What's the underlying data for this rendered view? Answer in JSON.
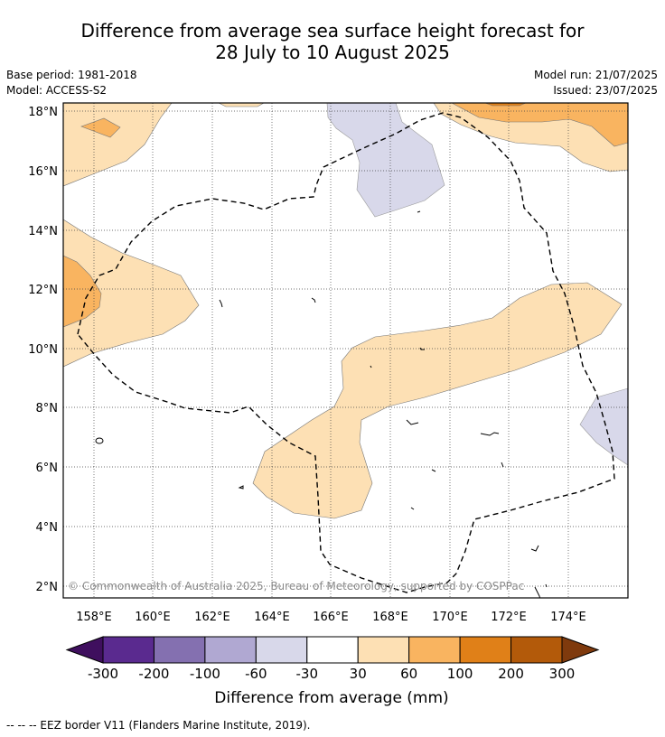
{
  "title_line1": "Difference from average sea surface height forecast for",
  "title_line2": "28 July to 10 August 2025",
  "base_period": "Base period: 1981-2018",
  "model": "Model: ACCESS-S2",
  "model_run": "Model run: 21/07/2025",
  "issued": "Issued: 23/07/2025",
  "copyright": "© Commonwealth of Australia 2025, Bureau of Meteorology, supported by COSPPac",
  "footer_note": "--  --  -- EEZ border V11 (Flanders Marine Institute, 2019).",
  "lat_labels": [
    "18°N",
    "16°N",
    "14°N",
    "12°N",
    "10°N",
    "8°N",
    "6°N",
    "4°N",
    "2°N"
  ],
  "lon_labels": [
    "158°E",
    "160°E",
    "162°E",
    "164°E",
    "166°E",
    "168°E",
    "170°E",
    "172°E",
    "174°E"
  ],
  "colorbar": {
    "title": "Difference from average (mm)",
    "tick_labels": [
      "-300",
      "-200",
      "-100",
      "-60",
      "-30",
      "30",
      "60",
      "100",
      "200",
      "300"
    ],
    "colors": [
      "#3f0f5e",
      "#5a2a8f",
      "#8470b0",
      "#b0a8d2",
      "#d8d8ea",
      "#ffffff",
      "#fde0b4",
      "#f9b460",
      "#e08018",
      "#b35a0a",
      "#7f3a0d"
    ]
  },
  "chart_data": {
    "type": "heatmap",
    "lat_range": [
      1.6,
      18.3
    ],
    "lon_range": [
      157,
      176
    ],
    "grid": true,
    "legend_placement": "bottom",
    "levels_mm": [
      -300,
      -200,
      -100,
      -60,
      -30,
      30,
      60,
      100,
      200,
      300
    ],
    "regions": [
      {
        "category": "30 to 60",
        "area": "north-west corner near 157-160°E, 16-18°N"
      },
      {
        "category": "60 to 100",
        "area": "small patch near 158.5°E, 17.5°N"
      },
      {
        "category": "30 to 60",
        "area": "west edge near 157-161.5°E, 9.5-14°N"
      },
      {
        "category": "60 to 100",
        "area": "west edge near 157-158°E, 10.5-13°N"
      },
      {
        "category": "30 to 60",
        "area": "diagonal band from 163.5°E, 5°N to 175.5°E, 12°N"
      },
      {
        "category": "30 to 60",
        "area": "north-east near 169.5-176°E, 16-18°N"
      },
      {
        "category": "60 to 100",
        "area": "north-east near 170.5-176°E, 16.8-18°N"
      },
      {
        "category": "-60 to -30",
        "area": "north near 166-171°E, 14.5-18°N"
      },
      {
        "category": "-60 to -30",
        "area": "east edge near 174.5-176°E, 6.3-8.6°N"
      }
    ]
  }
}
